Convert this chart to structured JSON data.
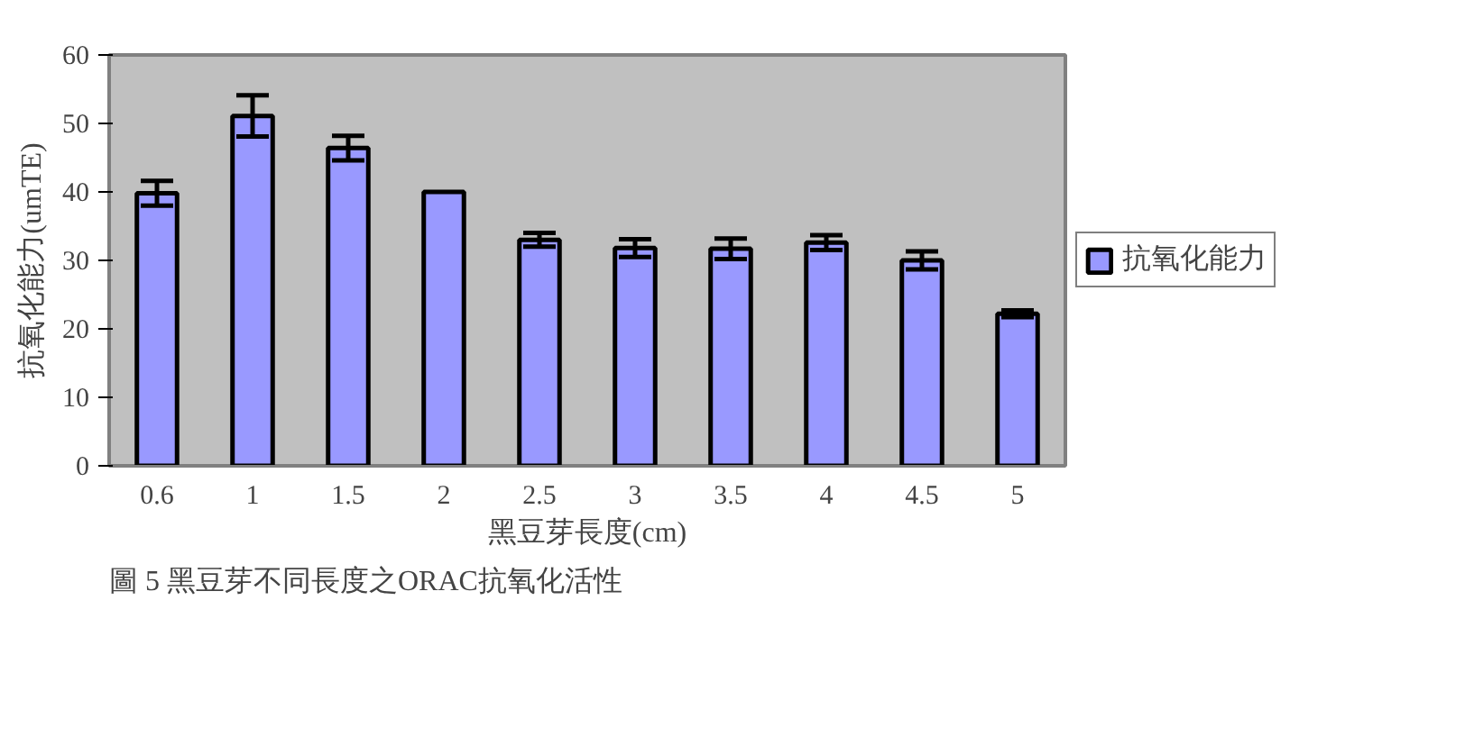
{
  "chart_data": {
    "type": "bar",
    "xlabel": "黑豆芽長度(cm)",
    "ylabel": "抗氧化能力(umTE)",
    "categories": [
      "0.6",
      "1",
      "1.5",
      "2",
      "2.5",
      "3",
      "3.5",
      "4",
      "4.5",
      "5"
    ],
    "series": [
      {
        "name": "抗氧化能力",
        "color": "#9999ff",
        "values": [
          39.8,
          51.1,
          46.4,
          40.0,
          33.0,
          31.8,
          31.7,
          32.6,
          30.0,
          22.2
        ],
        "errors": [
          1.8,
          3,
          1.8,
          null,
          1,
          1.3,
          1.5,
          1.1,
          1.3,
          0.5
        ]
      }
    ],
    "ylim": [
      0,
      60
    ],
    "yticks": [
      0,
      10,
      20,
      30,
      40,
      50,
      60
    ],
    "grid": false,
    "legend": "right",
    "annotations": [
      "圖 5 黑豆芽不同長度之ORAC抗氧化活性"
    ]
  }
}
